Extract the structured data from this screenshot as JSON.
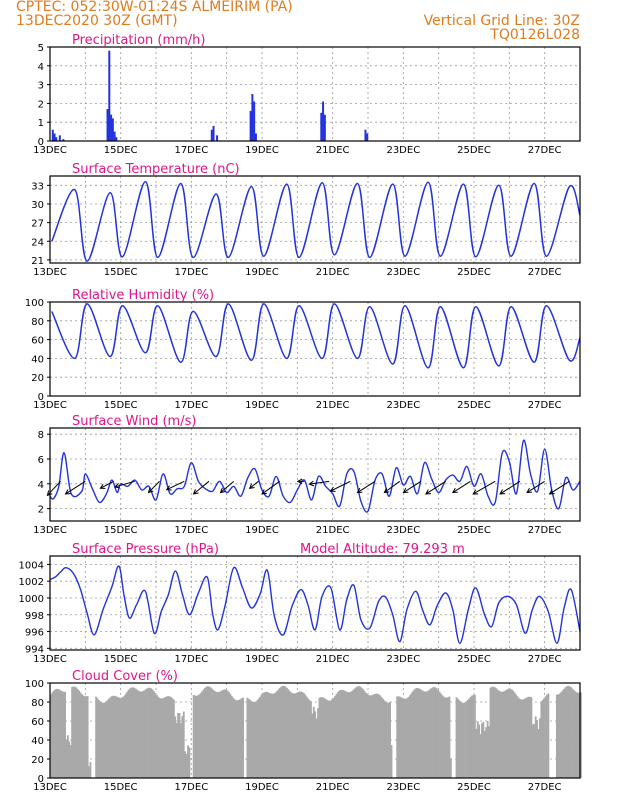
{
  "header": {
    "line1_left": "CPTEC:   052:30W-01:24S   ALMEIRIM (PA)",
    "line2_left": "13DEC2020 30Z (GMT)",
    "line1_right": "Vertical Grid Line: 30Z",
    "line2_right": "TQ0126L028"
  },
  "colors": {
    "header": "#e07b1e",
    "title": "#e0168a",
    "series": "#2233dd",
    "arrows": "#000000",
    "cloud": "#a9a9a9"
  },
  "x_axis": {
    "tick_labels": [
      "13DEC",
      "15DEC",
      "17DEC",
      "19DEC",
      "21DEC",
      "23DEC",
      "25DEC",
      "27DEC"
    ],
    "tick_days": [
      0,
      2,
      4,
      6,
      8,
      10,
      12,
      14
    ],
    "range_days": [
      0,
      15
    ]
  },
  "chart_data": [
    {
      "id": "precip",
      "type": "bar",
      "title": "Precipitation (mm/h)",
      "ylim": [
        0,
        5
      ],
      "yticks": [
        0,
        1,
        2,
        3,
        4,
        5
      ],
      "x": [
        0.05,
        0.1,
        0.15,
        0.25,
        0.35,
        1.6,
        1.65,
        1.7,
        1.75,
        1.8,
        1.85,
        4.55,
        4.6,
        4.7,
        5.65,
        5.7,
        5.75,
        5.8,
        7.65,
        7.7,
        7.75,
        8.9,
        8.95
      ],
      "values": [
        0.6,
        0.4,
        0.2,
        0.3,
        0.1,
        1.7,
        4.8,
        1.4,
        1.2,
        0.5,
        0.2,
        0.6,
        0.8,
        0.3,
        1.6,
        2.5,
        2.1,
        0.4,
        1.5,
        2.1,
        1.4,
        0.6,
        0.4
      ]
    },
    {
      "id": "temp",
      "type": "line",
      "title": "Surface Temperature (nC)",
      "ylim": [
        20.5,
        34.5
      ],
      "yticks": [
        21,
        24,
        27,
        30,
        33
      ],
      "min": [
        24,
        20.8,
        21.5,
        21.4,
        21.4,
        21.4,
        21.6,
        21.4,
        21.8,
        21.4,
        21.6,
        21.6,
        21.5,
        21.6,
        21.6,
        21.8
      ],
      "max": [
        32.3,
        31.8,
        33.6,
        33.3,
        31.6,
        32.8,
        33.2,
        33.4,
        33.3,
        33.2,
        33.5,
        33.2,
        33.0,
        33.3,
        32.8
      ],
      "last": 28.2
    },
    {
      "id": "rh",
      "type": "line",
      "title": "Relative Humidity (%)",
      "ylim": [
        0,
        100
      ],
      "yticks": [
        0,
        20,
        40,
        60,
        80,
        100
      ],
      "max": [
        90,
        98,
        96,
        96,
        90,
        98,
        98,
        96,
        98,
        95,
        96,
        95,
        95,
        95,
        96,
        92
      ],
      "min": [
        40,
        42,
        46,
        36,
        42,
        38,
        40,
        40,
        40,
        34,
        30,
        30,
        32,
        36,
        38
      ],
      "last": 62
    },
    {
      "id": "wind",
      "type": "line",
      "title": "Surface Wind (m/s)",
      "ylim": [
        1,
        8.5
      ],
      "yticks": [
        2,
        4,
        6,
        8
      ],
      "x": [
        0,
        0.1,
        0.25,
        0.4,
        0.6,
        0.9,
        1.0,
        1.2,
        1.4,
        1.6,
        1.75,
        1.9,
        2.0,
        2.2,
        2.4,
        2.6,
        2.8,
        3.0,
        3.2,
        3.4,
        3.6,
        3.8,
        4.0,
        4.2,
        4.4,
        4.6,
        4.8,
        5.0,
        5.2,
        5.4,
        5.6,
        5.8,
        6.0,
        6.2,
        6.4,
        6.6,
        6.8,
        7.0,
        7.2,
        7.4,
        7.6,
        7.8,
        8.0,
        8.2,
        8.4,
        8.6,
        8.8,
        9.0,
        9.2,
        9.4,
        9.6,
        9.8,
        10.0,
        10.2,
        10.4,
        10.6,
        10.8,
        11.0,
        11.2,
        11.4,
        11.6,
        11.8,
        12.0,
        12.2,
        12.4,
        12.6,
        12.8,
        13.0,
        13.2,
        13.4,
        13.6,
        13.8,
        14.0,
        14.2,
        14.4,
        14.6,
        14.8,
        15.0
      ],
      "values": [
        3.0,
        2.8,
        3.8,
        6.5,
        3.2,
        3.4,
        4.8,
        3.6,
        2.5,
        3.2,
        4.3,
        3.3,
        4.0,
        3.8,
        4.3,
        3.5,
        3.8,
        2.7,
        4.8,
        3.2,
        3.6,
        3.8,
        5.7,
        4.2,
        3.6,
        3.4,
        4.2,
        3.3,
        3.8,
        3.0,
        4.5,
        5.2,
        3.5,
        3.0,
        4.6,
        3.0,
        2.5,
        3.5,
        4.3,
        2.7,
        4.6,
        3.8,
        3.2,
        2.2,
        4.8,
        5.0,
        2.6,
        1.8,
        4.3,
        4.8,
        3.0,
        5.3,
        3.9,
        4.6,
        3.2,
        5.7,
        4.4,
        3.3,
        4.3,
        4.7,
        4.2,
        5.4,
        3.8,
        4.8,
        3.0,
        2.5,
        6.5,
        5.8,
        3.2,
        7.5,
        4.8,
        3.4,
        6.8,
        3.5,
        2.0,
        4.5,
        3.5,
        4.2
      ],
      "vectors": [
        {
          "x": 0.3,
          "dx": -0.6,
          "dy": -1.0
        },
        {
          "x": 1.0,
          "dx": -0.9,
          "dy": -0.9
        },
        {
          "x": 1.8,
          "dx": -0.6,
          "dy": -0.5
        },
        {
          "x": 2.4,
          "dx": -0.9,
          "dy": -0.4
        },
        {
          "x": 3.1,
          "dx": -0.5,
          "dy": -0.8
        },
        {
          "x": 3.8,
          "dx": -0.8,
          "dy": -0.6
        },
        {
          "x": 4.5,
          "dx": -0.7,
          "dy": -0.9
        },
        {
          "x": 5.2,
          "dx": -0.6,
          "dy": -0.8
        },
        {
          "x": 5.9,
          "dx": -0.4,
          "dy": -0.5
        },
        {
          "x": 6.5,
          "dx": -0.8,
          "dy": -0.9
        },
        {
          "x": 7.2,
          "dx": -0.3,
          "dy": 0.0
        },
        {
          "x": 7.9,
          "dx": -0.9,
          "dy": -0.2
        },
        {
          "x": 8.5,
          "dx": -0.9,
          "dy": -0.7
        },
        {
          "x": 9.2,
          "dx": -0.8,
          "dy": -0.8
        },
        {
          "x": 9.9,
          "dx": -0.7,
          "dy": -0.8
        },
        {
          "x": 10.5,
          "dx": -0.8,
          "dy": -0.8
        },
        {
          "x": 11.2,
          "dx": -0.9,
          "dy": -0.9
        },
        {
          "x": 11.9,
          "dx": -0.8,
          "dy": -0.8
        },
        {
          "x": 12.6,
          "dx": -1.0,
          "dy": -0.9
        },
        {
          "x": 13.3,
          "dx": -0.9,
          "dy": -0.9
        },
        {
          "x": 14.0,
          "dx": -0.8,
          "dy": -0.8
        },
        {
          "x": 14.7,
          "dx": -0.9,
          "dy": -0.9
        }
      ]
    },
    {
      "id": "pres",
      "type": "line",
      "title": "Surface Pressure (hPa)",
      "annotation": "Model Altitude: 79.293 m",
      "ylim": [
        993.8,
        1005
      ],
      "yticks": [
        994,
        996,
        998,
        1000,
        1002,
        1004
      ],
      "x": [
        0,
        0.15,
        0.3,
        0.45,
        0.65,
        0.85,
        1.05,
        1.25,
        1.5,
        1.75,
        1.95,
        2.1,
        2.25,
        2.45,
        2.7,
        2.95,
        3.15,
        3.35,
        3.55,
        3.75,
        3.95,
        4.2,
        4.45,
        4.6,
        4.75,
        4.95,
        5.2,
        5.45,
        5.7,
        5.95,
        6.15,
        6.35,
        6.6,
        6.85,
        7.1,
        7.3,
        7.5,
        7.7,
        7.95,
        8.2,
        8.4,
        8.6,
        8.8,
        9.05,
        9.3,
        9.5,
        9.7,
        9.9,
        10.1,
        10.35,
        10.55,
        10.75,
        10.95,
        11.2,
        11.4,
        11.6,
        11.85,
        12.05,
        12.3,
        12.5,
        12.7,
        12.95,
        13.2,
        13.45,
        13.65,
        13.85,
        14.1,
        14.35,
        14.55,
        14.75,
        15.0
      ],
      "values": [
        1002.2,
        1002.5,
        1003.1,
        1003.6,
        1003.0,
        1001.2,
        998.2,
        995.6,
        998.6,
        1001.3,
        1003.8,
        1000.2,
        997.6,
        999.2,
        1000.8,
        995.8,
        998.4,
        1000.4,
        1003.2,
        1000.4,
        998.0,
        1000.6,
        1002.5,
        998.2,
        996.2,
        999.0,
        1003.6,
        1001.2,
        998.8,
        1000.5,
        1003.3,
        997.8,
        995.6,
        999.0,
        1001.0,
        999.2,
        996.2,
        1000.2,
        1001.2,
        996.2,
        999.8,
        1001.5,
        997.4,
        996.4,
        999.6,
        1000.1,
        998.0,
        994.8,
        998.6,
        1000.8,
        998.5,
        996.8,
        999.0,
        1000.6,
        998.6,
        994.6,
        998.8,
        1001.2,
        998.0,
        996.6,
        999.4,
        1000.2,
        999.2,
        995.8,
        998.6,
        1000.2,
        998.4,
        994.6,
        998.8,
        1001.0,
        996.0
      ]
    },
    {
      "id": "cloud",
      "type": "bar",
      "title": "Cloud Cover (%)",
      "ylim": [
        0,
        100
      ],
      "yticks": [
        0,
        20,
        40,
        60,
        80,
        100
      ],
      "gaps": [
        [
          1.2,
          0.05
        ],
        [
          4.0,
          0.04
        ],
        [
          5.5,
          0.04
        ],
        [
          9.7,
          0.06
        ],
        [
          11.4,
          0.06
        ],
        [
          14.2,
          0.1
        ]
      ],
      "lows": [
        [
          0.4,
          0.6,
          30
        ],
        [
          1.05,
          1.2,
          8
        ],
        [
          3.5,
          3.8,
          55
        ],
        [
          3.8,
          3.95,
          20
        ],
        [
          7.4,
          7.6,
          60
        ],
        [
          9.6,
          9.75,
          20
        ],
        [
          11.3,
          11.45,
          15
        ],
        [
          12.0,
          12.4,
          45
        ],
        [
          13.6,
          13.85,
          50
        ],
        [
          14.1,
          14.25,
          10
        ]
      ]
    }
  ]
}
